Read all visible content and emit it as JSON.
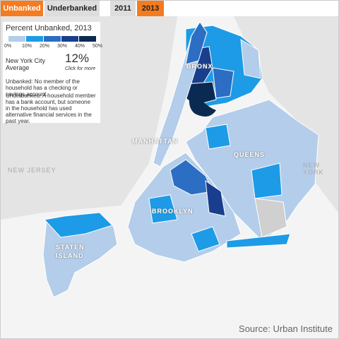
{
  "tabs": {
    "measures": [
      "Unbanked",
      "Underbanked"
    ],
    "years": [
      "2011",
      "2013"
    ]
  },
  "legend": {
    "title": "Percent Unbanked, 2013",
    "ticks": [
      "0%",
      "10%",
      "20%",
      "30%",
      "40%",
      "50%"
    ],
    "colors": [
      "#b3cdea",
      "#1e9be6",
      "#2b6ec3",
      "#193e8e",
      "#0b2a52"
    ]
  },
  "average": {
    "label": "New York City Average",
    "value": "12%",
    "link": "Click for more"
  },
  "definitions": [
    "Unbanked: No member of the household has a checking or savings account.",
    "Underbanked: A household member has a bank account, but someone in the household has used alternative financial services in the past year."
  ],
  "map_labels": {
    "bronx": "BRONX",
    "manhattan": "MANHATTAN",
    "queens": "QUEENS",
    "brooklyn": "BROOKLYN",
    "staten_island": "STATEN ISLAND",
    "new_jersey": "NEW JERSEY",
    "new_york": "NEW YORK"
  },
  "source": "Source: Urban Institute"
}
